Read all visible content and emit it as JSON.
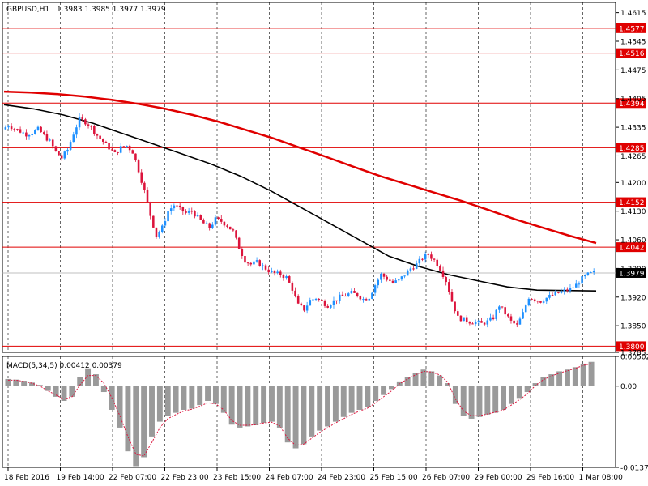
{
  "chart_data": [
    {
      "type": "candlestick",
      "header": {
        "symbol": "GBPUSD,H1",
        "ohlc": "1.3983 1.3985 1.3977 1.3979"
      },
      "ylim": [
        1.3785,
        1.464
      ],
      "yticks": [
        "1.4615",
        "1.4545",
        "1.4475",
        "1.4405",
        "1.4335",
        "1.4265",
        "1.4200",
        "1.4130",
        "1.4060",
        "1.3990",
        "1.3920",
        "1.3850",
        "1.3785"
      ],
      "current_price": "1.3979",
      "level_lines": [
        "1.4577",
        "1.4516",
        "1.4394",
        "1.4285",
        "1.4152",
        "1.4042",
        "1.3800"
      ],
      "xticks": [
        "18 Feb 2016",
        "19 Feb 14:00",
        "22 Feb 07:00",
        "22 Feb 23:00",
        "23 Feb 15:00",
        "24 Feb 07:00",
        "24 Feb 23:00",
        "25 Feb 15:00",
        "26 Feb 07:00",
        "29 Feb 00:00",
        "29 Feb 16:00",
        "1 Mar 08:00"
      ],
      "close_path": [
        1.433,
        1.434,
        1.4332,
        1.4325,
        1.4318,
        1.4322,
        1.433,
        1.4315,
        1.43,
        1.4275,
        1.426,
        1.428,
        1.432,
        1.4355,
        1.4348,
        1.4335,
        1.4315,
        1.43,
        1.4285,
        1.427,
        1.4285,
        1.429,
        1.4275,
        1.423,
        1.418,
        1.412,
        1.407,
        1.409,
        1.413,
        1.4145,
        1.4135,
        1.4125,
        1.413,
        1.4115,
        1.41,
        1.409,
        1.411,
        1.4105,
        1.4095,
        1.408,
        1.404,
        1.401,
        1.4,
        1.4005,
        1.3995,
        1.3985,
        1.3978,
        1.3975,
        1.3968,
        1.394,
        1.39,
        1.389,
        1.3912,
        1.3918,
        1.3908,
        1.39,
        1.391,
        1.392,
        1.3925,
        1.393,
        1.3925,
        1.3915,
        1.392,
        1.395,
        1.3975,
        1.3965,
        1.3955,
        1.396,
        1.3975,
        1.399,
        1.4,
        1.4015,
        1.4025,
        1.401,
        1.399,
        1.396,
        1.391,
        1.387,
        1.3865,
        1.386,
        1.3858,
        1.3855,
        1.386,
        1.387,
        1.39,
        1.388,
        1.386,
        1.385,
        1.388,
        1.392,
        1.3915,
        1.391,
        1.3918,
        1.3925,
        1.393,
        1.3935,
        1.394,
        1.395,
        1.3965,
        1.3975,
        1.3979
      ],
      "ma_fast": [
        1.439,
        1.438,
        1.4365,
        1.4345,
        1.432,
        1.4295,
        1.427,
        1.4245,
        1.4215,
        1.418,
        1.414,
        1.41,
        1.406,
        1.402,
        1.3995,
        1.3975,
        1.396,
        1.3945,
        1.3937,
        1.3936,
        1.3935
      ],
      "ma_slow": [
        1.4422,
        1.442,
        1.4416,
        1.441,
        1.4402,
        1.4392,
        1.438,
        1.4365,
        1.4348,
        1.4328,
        1.4308,
        1.4285,
        1.4262,
        1.4238,
        1.4215,
        1.4195,
        1.4175,
        1.4155,
        1.4133,
        1.411,
        1.409,
        1.407,
        1.4052
      ],
      "macd": {
        "label": "MACD(5,34,5) 0.00412 0.00379",
        "ylim": [
          -0.01371,
          0.00502
        ],
        "yticks": [
          "0.00502",
          "0.00",
          "-0.01371"
        ],
        "histogram": [
          0.0012,
          0.0011,
          0.0009,
          0.0006,
          0.0002,
          -0.0008,
          -0.0018,
          -0.0025,
          -0.0018,
          0.0015,
          0.003,
          0.002,
          -0.001,
          -0.004,
          -0.007,
          -0.011,
          -0.0135,
          -0.012,
          -0.0085,
          -0.006,
          -0.005,
          -0.0045,
          -0.004,
          -0.0038,
          -0.0032,
          -0.0025,
          -0.003,
          -0.0045,
          -0.0065,
          -0.007,
          -0.0068,
          -0.0066,
          -0.0062,
          -0.006,
          -0.007,
          -0.0095,
          -0.0105,
          -0.0098,
          -0.0085,
          -0.0075,
          -0.0068,
          -0.006,
          -0.0052,
          -0.0045,
          -0.004,
          -0.0035,
          -0.0025,
          -0.0015,
          -0.0005,
          0.0008,
          0.0015,
          0.0022,
          0.0028,
          0.0025,
          0.0018,
          0.0005,
          -0.003,
          -0.005,
          -0.0055,
          -0.0052,
          -0.0048,
          -0.0045,
          -0.004,
          -0.003,
          -0.002,
          -0.001,
          0.0005,
          0.0015,
          0.002,
          0.0025,
          0.0028,
          0.0032,
          0.0038,
          0.0041
        ],
        "signal": [
          0.001,
          0.001,
          0.0008,
          0.0005,
          0.0,
          -0.0008,
          -0.0015,
          -0.0022,
          -0.0018,
          0.0002,
          0.0018,
          0.0018,
          0.0005,
          -0.002,
          -0.005,
          -0.0085,
          -0.0115,
          -0.0118,
          -0.0095,
          -0.007,
          -0.0055,
          -0.0048,
          -0.0042,
          -0.0039,
          -0.0034,
          -0.0028,
          -0.003,
          -0.004,
          -0.0058,
          -0.0066,
          -0.0066,
          -0.0065,
          -0.0062,
          -0.0061,
          -0.0067,
          -0.0088,
          -0.01,
          -0.0098,
          -0.0088,
          -0.0078,
          -0.007,
          -0.0062,
          -0.0055,
          -0.0048,
          -0.0042,
          -0.0037,
          -0.0028,
          -0.0018,
          -0.0008,
          0.0004,
          0.0012,
          0.0019,
          0.0025,
          0.0024,
          0.0019,
          0.0007,
          -0.0022,
          -0.0042,
          -0.005,
          -0.005,
          -0.0047,
          -0.0044,
          -0.004,
          -0.0032,
          -0.0023,
          -0.0013,
          0.0001,
          0.0011,
          0.0017,
          0.0022,
          0.0026,
          0.003,
          0.0035,
          0.0038
        ]
      }
    }
  ],
  "colors": {
    "candle_up": "#1e90ff",
    "candle_down": "#dc143c",
    "level_line": "#e00000",
    "level_tag_bg": "#e00000",
    "current_tag_bg": "#000000",
    "ma_fast": "#000000",
    "ma_slow": "#e00000",
    "macd_hist": "#9a9a9a",
    "macd_signal": "#dc143c",
    "grid": "#000000"
  }
}
